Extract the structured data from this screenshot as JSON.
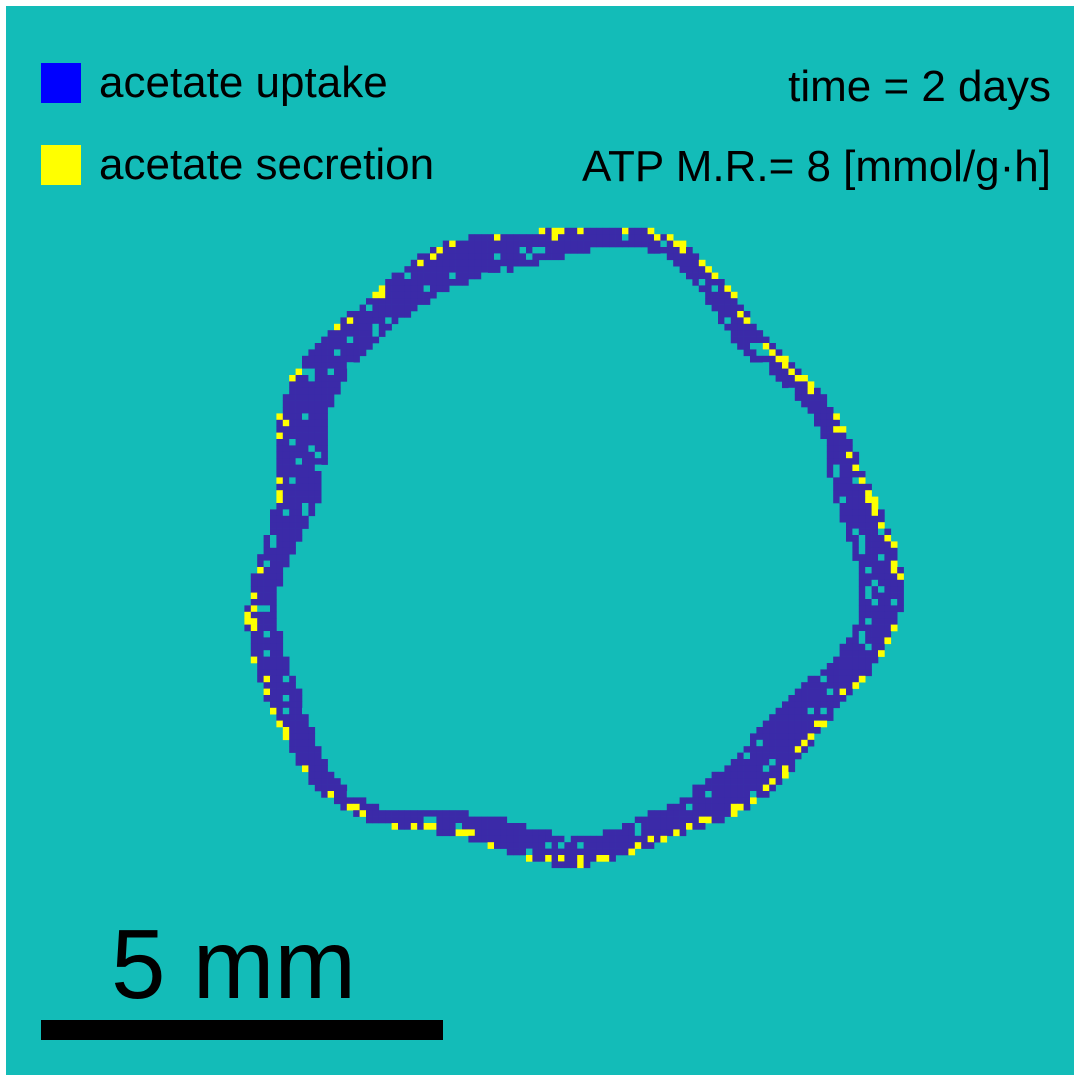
{
  "colors": {
    "background": "#13bcb8",
    "uptake": "#0000ff",
    "secretion": "#ffff00",
    "ring_body": "#3b2aa8",
    "ring_edge": "#ffff00"
  },
  "legend": [
    {
      "label": "acetate uptake",
      "color_key": "uptake"
    },
    {
      "label": "acetate secretion",
      "color_key": "secretion"
    }
  ],
  "info": {
    "time": "time = 2 days",
    "atp": "ATP M.R.= 8 [mmol/g·h]"
  },
  "scale_bar": {
    "label": "5 mm"
  }
}
